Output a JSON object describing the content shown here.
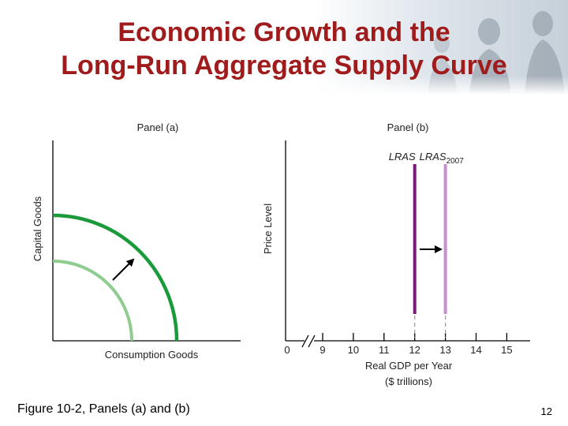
{
  "slide": {
    "title_line1": "Economic Growth and the",
    "title_line2": "Long-Run Aggregate Supply Curve",
    "caption": "Figure 10-2, Panels (a) and (b)",
    "page_number": "12",
    "title_color": "#a01c1c"
  },
  "chart_data": [
    {
      "type": "line",
      "panel_label": "Panel (a)",
      "title": "",
      "xlabel": "Consumption Goods",
      "ylabel": "Capital Goods",
      "x_ticks": [],
      "y_ticks": [],
      "grid": false,
      "series": [
        {
          "name": "",
          "role": "initial production possibilities curve",
          "color": "#8fcc8f"
        },
        {
          "name": "",
          "role": "outward-shifted production possibilities curve",
          "color": "#1a9a3a"
        }
      ],
      "annotations": [
        {
          "type": "arrow",
          "meaning": "outward shift of the curve"
        }
      ]
    },
    {
      "type": "line",
      "panel_label": "Panel (b)",
      "title": "",
      "xlabel_line1": "Real GDP per Year",
      "xlabel_line2": "($ trillions)",
      "ylabel": "Price Level",
      "x_ticks": [
        "0",
        "9",
        "10",
        "11",
        "12",
        "13",
        "14",
        "15"
      ],
      "axis_break": true,
      "grid": false,
      "vertical_lines": [
        {
          "label": "LRAS",
          "label_sub": "",
          "x": 12,
          "color": "#7a1a7a"
        },
        {
          "label": "LRAS",
          "label_sub": "2007",
          "x": 13,
          "color": "#c98fcf"
        }
      ],
      "annotations": [
        {
          "type": "arrow",
          "meaning": "rightward shift from LRAS to LRAS2007"
        }
      ]
    }
  ]
}
